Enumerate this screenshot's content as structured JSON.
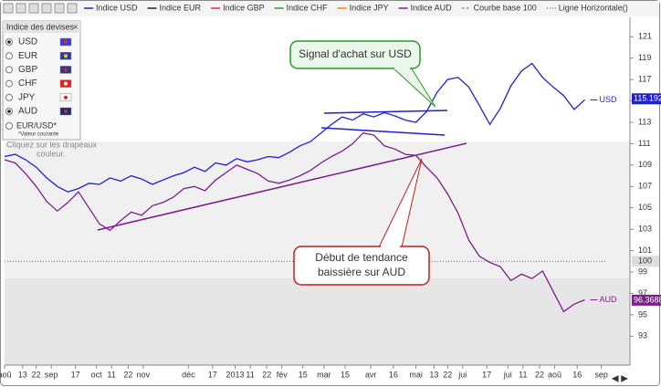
{
  "chart_data": {
    "type": "line",
    "x": [
      0,
      7,
      14,
      21,
      28,
      35,
      42,
      49,
      56,
      63,
      70,
      77,
      84,
      91,
      98,
      105,
      112,
      119,
      126,
      133,
      140,
      147,
      154,
      161,
      168,
      175,
      182,
      189,
      196,
      203,
      210,
      217,
      224,
      231,
      238,
      245,
      252,
      259,
      266,
      273,
      280,
      287,
      294,
      301,
      308,
      315,
      322,
      329,
      336,
      343,
      350,
      357,
      364,
      371,
      378,
      385
    ],
    "series": [
      {
        "name": "Indice USD",
        "label": "USD",
        "color": "#1f1fd6",
        "last": 115.192,
        "values": [
          109.8,
          110.0,
          109.5,
          108.8,
          107.8,
          107.0,
          106.5,
          106.8,
          107.3,
          107.2,
          107.8,
          107.5,
          108.0,
          107.7,
          107.2,
          107.6,
          108.0,
          108.3,
          108.8,
          108.4,
          109.2,
          109.0,
          109.6,
          109.3,
          109.5,
          109.8,
          109.7,
          110.2,
          110.8,
          111.2,
          112.0,
          112.8,
          113.5,
          113.2,
          113.8,
          113.5,
          113.9,
          113.6,
          113.2,
          113.0,
          114.0,
          115.8,
          117.0,
          117.2,
          116.3,
          114.6,
          112.8,
          114.3,
          116.4,
          117.8,
          118.5,
          117.2,
          116.3,
          115.5,
          114.2,
          115.1
        ]
      },
      {
        "name": "Indice AUD",
        "label": "AUD",
        "color": "#7a1f8c",
        "last": 96.3688,
        "values": [
          109.5,
          109.2,
          108.2,
          107.0,
          105.6,
          104.7,
          105.5,
          106.5,
          105.0,
          103.5,
          102.9,
          103.8,
          104.6,
          104.3,
          105.2,
          105.5,
          106.0,
          106.8,
          107.0,
          106.6,
          107.6,
          108.3,
          109.0,
          108.6,
          108.2,
          107.5,
          107.3,
          107.6,
          108.0,
          108.5,
          109.2,
          109.8,
          110.3,
          111.0,
          112.0,
          111.8,
          110.8,
          110.5,
          110.0,
          109.9,
          108.8,
          107.8,
          106.3,
          104.5,
          102.0,
          100.5,
          99.9,
          99.5,
          98.2,
          98.8,
          98.4,
          99.1,
          97.2,
          95.3,
          96.0,
          96.4
        ]
      }
    ],
    "other_indices": [
      {
        "name": "Indice EUR",
        "color": "#222222"
      },
      {
        "name": "Indice GBP",
        "color": "#e03030"
      },
      {
        "name": "Indice CHF",
        "color": "#2a9a2a"
      },
      {
        "name": "Indice JPY",
        "color": "#f08a00"
      }
    ],
    "base_curve": {
      "name": "Courbe base 100",
      "color": "#999999"
    },
    "horizontal_line": {
      "name": "Ligne Horizontale()",
      "value": 100,
      "color": "#777777"
    },
    "xlim": [
      0,
      415
    ],
    "xticks": [
      {
        "value": 0,
        "label": "aoû"
      },
      {
        "value": 12,
        "label": "13"
      },
      {
        "value": 21,
        "label": "22"
      },
      {
        "value": 31,
        "label": "sep"
      },
      {
        "value": 47,
        "label": "17"
      },
      {
        "value": 61,
        "label": "oct"
      },
      {
        "value": 71,
        "label": "11"
      },
      {
        "value": 82,
        "label": "22"
      },
      {
        "value": 92,
        "label": "nov"
      },
      {
        "value": 122,
        "label": "déc"
      },
      {
        "value": 138,
        "label": "17"
      },
      {
        "value": 153,
        "label": "2013"
      },
      {
        "value": 163,
        "label": "11"
      },
      {
        "value": 174,
        "label": "22"
      },
      {
        "value": 184,
        "label": "fév"
      },
      {
        "value": 198,
        "label": "15"
      },
      {
        "value": 212,
        "label": "mar"
      },
      {
        "value": 226,
        "label": "15"
      },
      {
        "value": 243,
        "label": "avr"
      },
      {
        "value": 258,
        "label": "16"
      },
      {
        "value": 273,
        "label": "mai"
      },
      {
        "value": 285,
        "label": "13"
      },
      {
        "value": 294,
        "label": "22"
      },
      {
        "value": 304,
        "label": "jui"
      },
      {
        "value": 320,
        "label": "17"
      },
      {
        "value": 334,
        "label": "jui"
      },
      {
        "value": 344,
        "label": "11"
      },
      {
        "value": 355,
        "label": "22"
      },
      {
        "value": 365,
        "label": "aoû"
      },
      {
        "value": 380,
        "label": "16"
      },
      {
        "value": 396,
        "label": "sep"
      }
    ],
    "ylim": [
      90.3,
      122.3
    ],
    "yticks": [
      93,
      95,
      97,
      99,
      101,
      103,
      105,
      107,
      109,
      111,
      113,
      115,
      117,
      119,
      121
    ],
    "grid": false,
    "annotations": [
      "Signal d'achat sur USD",
      "Début de tendance",
      "baissière sur AUD"
    ]
  },
  "panel": {
    "title": "Indice des devises",
    "items": [
      {
        "code": "USD",
        "checked": true
      },
      {
        "code": "EUR",
        "checked": false
      },
      {
        "code": "GBP",
        "checked": false
      },
      {
        "code": "CHF",
        "checked": false
      },
      {
        "code": "JPY",
        "checked": false
      },
      {
        "code": "AUD",
        "checked": true
      }
    ],
    "pair": "EUR/USD*",
    "note": "*Valeur courante",
    "hint": [
      "Cliquez sur les drapeaux",
      "couleur."
    ]
  }
}
